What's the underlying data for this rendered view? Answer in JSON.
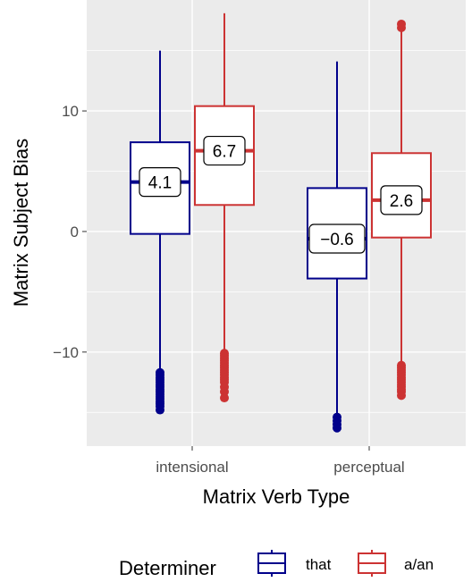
{
  "chart_data": {
    "type": "box",
    "xlabel": "Matrix Verb Type",
    "ylabel": "Matrix Subject Bias",
    "categories": [
      "intensional",
      "perceptual"
    ],
    "ylim": [
      -17.8,
      19.2
    ],
    "yticks": [
      -10,
      0,
      10
    ],
    "ytick_labels": [
      "−10",
      "0",
      "10"
    ],
    "grid": true,
    "legend": {
      "title": "Determiner",
      "position": "bottom",
      "entries": [
        "that",
        "a/an"
      ]
    },
    "series": [
      {
        "name": "that",
        "color": "#00008B",
        "boxes": [
          {
            "category": "intensional",
            "whisker_low": -11.5,
            "q1": -0.2,
            "median": 4.1,
            "q3": 7.4,
            "whisker_high": 15.0,
            "label": "4.1",
            "outliers": [
              -11.7,
              -11.9,
              -12.1,
              -12.3,
              -12.5,
              -12.7,
              -12.9,
              -13.1,
              -13.3,
              -13.5,
              -13.7,
              -13.9,
              -14.1,
              -14.3,
              -14.5,
              -14.8
            ]
          },
          {
            "category": "perceptual",
            "whisker_low": -15.1,
            "q1": -3.9,
            "median": -0.6,
            "q3": 3.6,
            "whisker_high": 14.1,
            "label": "−0.6",
            "outliers": [
              -15.4,
              -15.7,
              -16.0,
              -16.3
            ]
          }
        ]
      },
      {
        "name": "a/an",
        "color": "#CC3333",
        "boxes": [
          {
            "category": "intensional",
            "whisker_low": -9.9,
            "q1": 2.2,
            "median": 6.7,
            "q3": 10.4,
            "whisker_high": 18.1,
            "label": "6.7",
            "outliers": [
              -10.1,
              -10.3,
              -10.5,
              -10.7,
              -10.9,
              -11.1,
              -11.3,
              -11.5,
              -11.7,
              -11.9,
              -12.1,
              -12.3,
              -12.5,
              -12.9,
              -13.3,
              -13.8
            ]
          },
          {
            "category": "perceptual",
            "whisker_low": -10.9,
            "q1": -0.5,
            "median": 2.6,
            "q3": 6.5,
            "whisker_high": 17.0,
            "label": "2.6",
            "outliers": [
              -11.1,
              -11.3,
              -11.5,
              -11.7,
              -11.9,
              -12.1,
              -12.3,
              -12.5,
              -12.7,
              -12.9,
              -13.1,
              -13.3,
              -13.6,
              16.9,
              17.2
            ]
          }
        ]
      }
    ]
  }
}
